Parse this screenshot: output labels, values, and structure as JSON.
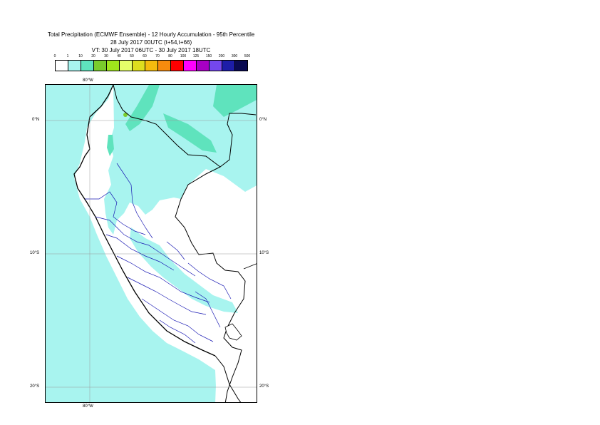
{
  "header": {
    "line1": "Total Precipitation (ECMWF Ensemble) - 12 Hourly Accumulation - 95th Percentile",
    "line2": "28 July 2017 00UTC (t+54,t+66)",
    "line3": "VT: 30 July 2017 06UTC - 30 July 2017 18UTC"
  },
  "legend": {
    "labels": [
      "0",
      "1",
      "10",
      "20",
      "30",
      "40",
      "50",
      "60",
      "70",
      "80",
      "100",
      "125",
      "150",
      "200",
      "300",
      "500"
    ],
    "colors": [
      "#ffffff",
      "#a8f4ef",
      "#5fe3bd",
      "#7acc2c",
      "#9fe61c",
      "#e4ff6a",
      "#dede1e",
      "#f4bb0e",
      "#f78b0e",
      "#ff0000",
      "#ff00ff",
      "#a800c4",
      "#7447ee",
      "#1d1da8",
      "#0a0a52"
    ]
  },
  "axes": {
    "lon_label": "80°W",
    "lat_labels": [
      "0°N",
      "10°S",
      "20°S"
    ]
  }
}
